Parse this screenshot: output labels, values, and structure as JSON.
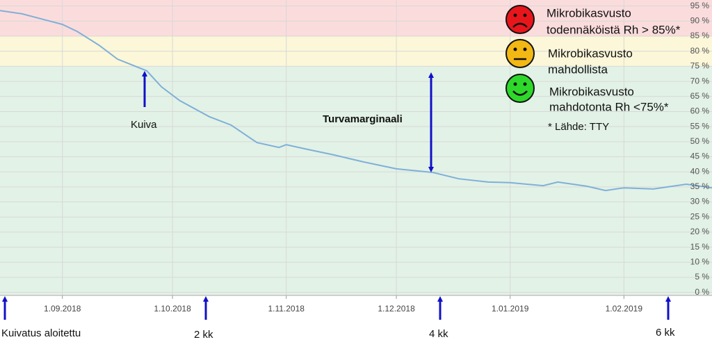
{
  "chart_data": {
    "type": "line",
    "x": [
      "2018-08-15",
      "2018-08-21",
      "2018-08-27",
      "2018-09-01",
      "2018-09-05",
      "2018-09-11",
      "2018-09-16",
      "2018-09-24",
      "2018-09-28",
      "2018-10-03",
      "2018-10-11",
      "2018-10-17",
      "2018-10-24",
      "2018-10-30",
      "2018-11-01",
      "2018-11-07",
      "2018-11-14",
      "2018-11-22",
      "2018-12-01",
      "2018-12-11",
      "2018-12-18",
      "2018-12-26",
      "2019-01-01",
      "2019-01-10",
      "2019-01-14",
      "2019-01-22",
      "2019-01-27",
      "2019-02-01",
      "2019-02-09",
      "2019-02-18",
      "2019-02-25"
    ],
    "values": [
      93.5,
      92.4,
      90.5,
      88.9,
      86.6,
      82,
      77.4,
      73.5,
      68.2,
      63.6,
      58.3,
      55.5,
      49.7,
      48.1,
      49,
      47.4,
      45.6,
      43.3,
      41,
      39.8,
      37.7,
      36.6,
      36.4,
      35.4,
      36.6,
      35.2,
      33.8,
      34.7,
      34.3,
      35.9,
      34.7
    ],
    "color": "#7fb0d8",
    "xlim": [
      "2018-08-15",
      "2019-02-25"
    ],
    "xticks": [
      {
        "value": "2018-09-01",
        "label": "1.09.2018"
      },
      {
        "value": "2018-10-01",
        "label": "1.10.2018"
      },
      {
        "value": "2018-11-01",
        "label": "1.11.2018"
      },
      {
        "value": "2018-12-01",
        "label": "1.12.2018"
      },
      {
        "value": "2019-01-01",
        "label": "1.01.2019"
      },
      {
        "value": "2019-02-01",
        "label": "1.02.2019"
      }
    ],
    "ylim": [
      -1,
      97
    ],
    "yticks": [
      {
        "value": 0,
        "label": "0 %"
      },
      {
        "value": 5,
        "label": "5 %"
      },
      {
        "value": 10,
        "label": "10 %"
      },
      {
        "value": 15,
        "label": "15 %"
      },
      {
        "value": 20,
        "label": "20 %"
      },
      {
        "value": 25,
        "label": "25 %"
      },
      {
        "value": 30,
        "label": "30 %"
      },
      {
        "value": 35,
        "label": "35 %"
      },
      {
        "value": 40,
        "label": "40 %"
      },
      {
        "value": 45,
        "label": "45 %"
      },
      {
        "value": 50,
        "label": "50 %"
      },
      {
        "value": 55,
        "label": "55 %"
      },
      {
        "value": 60,
        "label": "60 %"
      },
      {
        "value": 65,
        "label": "65 %"
      },
      {
        "value": 70,
        "label": "70 %"
      },
      {
        "value": 75,
        "label": "75 %"
      },
      {
        "value": 80,
        "label": "80 %"
      },
      {
        "value": 85,
        "label": "85 %"
      },
      {
        "value": 90,
        "label": "90 %"
      },
      {
        "value": 95,
        "label": "95 %"
      }
    ],
    "grid": true,
    "zones": [
      {
        "from": 85,
        "to": 97,
        "color": "#fbdcdc"
      },
      {
        "from": 75,
        "to": 85,
        "color": "#fbf7d8"
      },
      {
        "from": -1,
        "to": 75,
        "color": "#e2f2e6"
      }
    ],
    "legend": [
      {
        "lines": [
          "Mikrobikasvusto",
          "todennäköistä Rh > 85%*"
        ]
      },
      {
        "lines": [
          "Mikrobikasvusto",
          "mahdollista"
        ]
      },
      {
        "lines": [
          "Mikrobikasvusto",
          "mahdotonta Rh <75%*"
        ]
      }
    ],
    "source": "* Lähde: TTY",
    "annotations": [
      "Kuiva",
      "Turvamarginaali",
      "Kuivatus aloitettu",
      "2 kk",
      "4 kk",
      "6 kk"
    ]
  }
}
